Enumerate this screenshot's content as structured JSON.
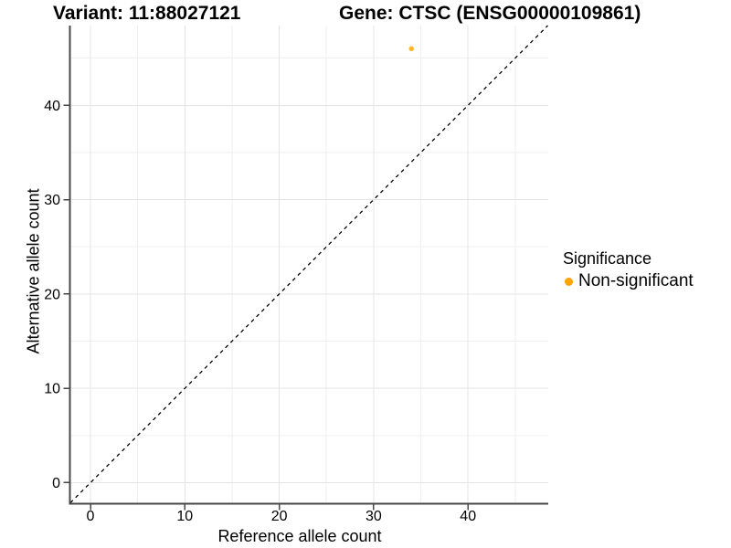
{
  "chart_data": {
    "type": "scatter",
    "titles": {
      "left": "Variant: 11:88027121",
      "right": "Gene: CTSC (ENSG00000109861)"
    },
    "xlabel": "Reference allele count",
    "ylabel": "Alternative allele count",
    "x_ticks": [
      0,
      10,
      20,
      30,
      40
    ],
    "y_ticks": [
      0,
      10,
      20,
      30,
      40
    ],
    "x_minor_ticks": [
      5,
      15,
      25,
      35,
      45
    ],
    "y_minor_ticks": [
      5,
      15,
      25,
      35,
      45
    ],
    "xlim": [
      -2.13,
      48.5
    ],
    "ylim": [
      -2.18,
      48.45
    ],
    "grid": true,
    "identity_line": {
      "slope": 1,
      "intercept": 0,
      "style": "dashed",
      "color": "#000000"
    },
    "series": [
      {
        "name": "Non-significant",
        "color": "#FFA500",
        "point_opacity": 0.8,
        "points": [
          {
            "x": 34,
            "y": 46
          }
        ]
      }
    ],
    "legend": {
      "title": "Significance",
      "position": "right",
      "entries": [
        {
          "label": "Non-significant",
          "color": "#FFA500",
          "marker": "circle"
        }
      ]
    },
    "colors": {
      "background": "#FFFFFF",
      "grid_major": "#E4E4E4",
      "grid_minor": "#EFEFEF",
      "axis_line": "#474747",
      "tick_mark": "#474747",
      "text": "#000000"
    }
  }
}
